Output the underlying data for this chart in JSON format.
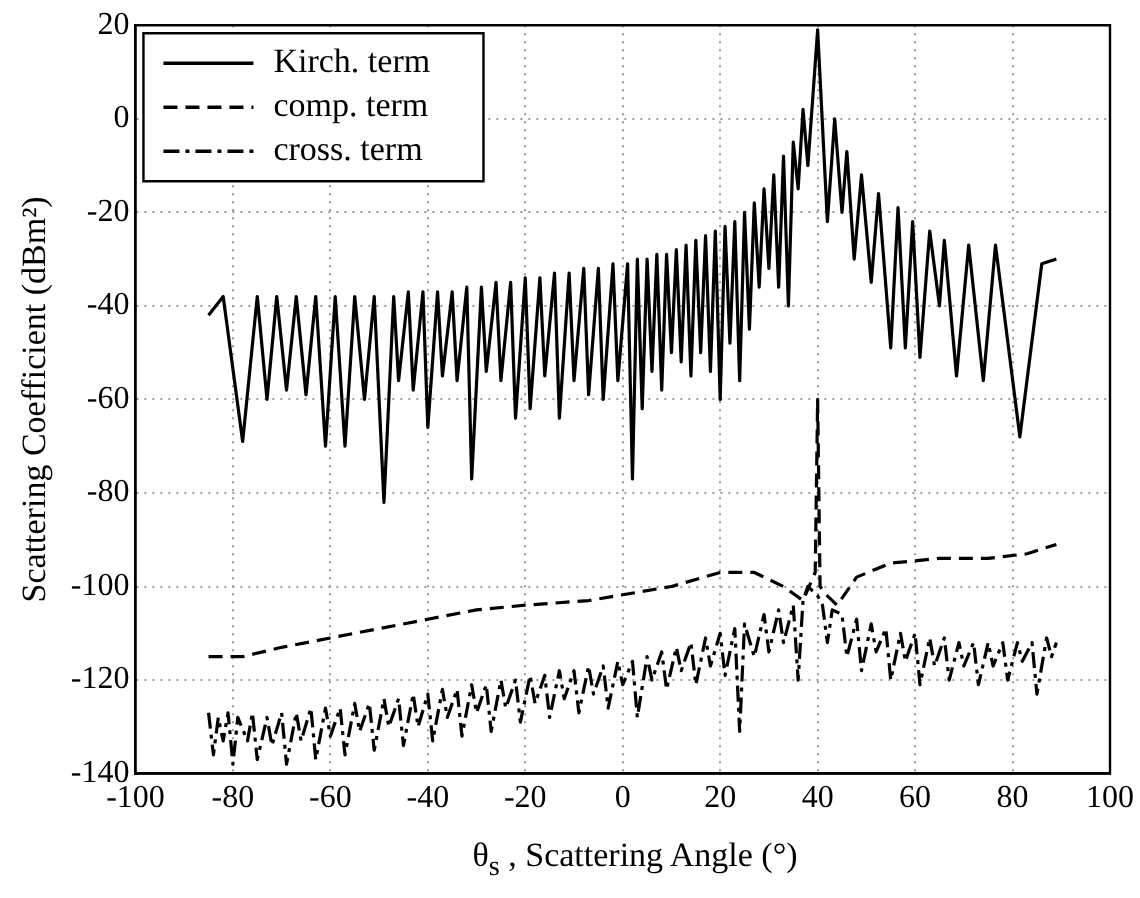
{
  "chart_data": {
    "type": "line",
    "xlabel": "θ$_{s}$ , Scattering Angle (°)",
    "ylabel": "Scattering Coefficient (dBm²)",
    "xlim": [
      -100,
      100
    ],
    "xticks": [
      -100,
      -80,
      -60,
      -40,
      -20,
      0,
      20,
      40,
      60,
      80,
      100
    ],
    "ylim": [
      -140,
      20
    ],
    "yticks": [
      -140,
      -120,
      -100,
      -80,
      -60,
      -40,
      -20,
      0,
      20
    ],
    "grid": true,
    "legend": "top left",
    "marker": "none",
    "series": [
      {
        "name": "Kirch. term",
        "color": "#000000",
        "line_style": "solid",
        "x": [
          -85,
          -82,
          -78,
          -75,
          -73,
          -71,
          -69,
          -67,
          -65,
          -63,
          -61,
          -59,
          -57,
          -55,
          -53,
          -51,
          -49,
          -47,
          -46,
          -44,
          -43,
          -41,
          -40,
          -38,
          -37,
          -35,
          -34,
          -32,
          -31,
          -29,
          -28,
          -26,
          -25,
          -23,
          -22,
          -20,
          -19,
          -17,
          -16,
          -14,
          -13,
          -11,
          -10,
          -8,
          -7,
          -5,
          -4,
          -2,
          -1,
          1,
          2,
          3,
          4,
          5,
          6,
          7,
          8,
          9,
          10,
          11,
          12,
          13,
          14,
          15,
          16,
          17,
          18,
          19,
          20,
          21,
          22,
          23,
          24,
          25,
          26,
          27,
          28,
          29,
          30,
          31,
          32,
          33,
          34,
          35,
          36,
          37,
          38,
          40,
          42,
          43.5,
          45,
          46,
          47.5,
          49,
          51,
          52.5,
          55,
          56.5,
          58,
          59.5,
          61,
          63,
          65,
          66,
          68.5,
          71,
          74,
          76.5,
          81.5,
          86,
          89
        ],
        "values": [
          -42,
          -38,
          -69,
          -38,
          -60,
          -38,
          -58,
          -38,
          -59,
          -38,
          -70,
          -38,
          -70,
          -38,
          -60,
          -38,
          -82,
          -38,
          -56,
          -37,
          -58,
          -37,
          -66,
          -37,
          -55,
          -37,
          -56,
          -36,
          -77,
          -36,
          -54,
          -35,
          -56,
          -35,
          -64,
          -34,
          -62,
          -34,
          -55,
          -33,
          -64,
          -33,
          -56,
          -32,
          -59,
          -32,
          -60,
          -31,
          -56,
          -31,
          -77,
          -30,
          -62,
          -30,
          -54,
          -29,
          -58,
          -29,
          -50,
          -28,
          -52,
          -27,
          -55,
          -26,
          -50,
          -25,
          -54,
          -24,
          -60,
          -23,
          -48,
          -22,
          -56,
          -20,
          -45,
          -18,
          -36,
          -15,
          -32,
          -12,
          -36,
          -8,
          -40,
          -5,
          -15,
          2,
          -10,
          19,
          -22,
          0,
          -20,
          -7,
          -30,
          -12,
          -35,
          -16,
          -49,
          -19,
          -49,
          -22,
          -51,
          -24,
          -40,
          -26,
          -55,
          -27,
          -56,
          -27,
          -68,
          -31,
          -30
        ]
      },
      {
        "name": "comp. term",
        "color": "#000000",
        "line_style": "dashed",
        "x": [
          -85,
          -78,
          -70,
          -60,
          -50,
          -40,
          -30,
          -20,
          -7,
          10,
          20,
          27,
          33,
          37,
          39.5,
          40,
          40.5,
          42,
          44,
          48,
          55,
          65,
          75,
          83,
          89
        ],
        "values": [
          -115,
          -115,
          -113,
          -111,
          -109,
          -107,
          -105,
          -104,
          -103,
          -100,
          -97,
          -97,
          -100,
          -103,
          -97,
          -60,
          -100,
          -102,
          -104,
          -98,
          -95,
          -94,
          -94,
          -93,
          -91
        ]
      },
      {
        "name": "cross. term",
        "color": "#000000",
        "line_style": "dashdot",
        "x": [
          -85,
          -84,
          -83,
          -82,
          -81,
          -80,
          -79,
          -77,
          -76,
          -75,
          -73,
          -72,
          -70,
          -69,
          -67,
          -66,
          -64,
          -63,
          -61,
          -60,
          -58,
          -57,
          -55,
          -54,
          -52,
          -51,
          -49,
          -48,
          -46,
          -45,
          -43,
          -42,
          -40,
          -39,
          -37,
          -36,
          -34,
          -33,
          -31,
          -30,
          -28,
          -27,
          -25,
          -24,
          -22,
          -21,
          -19,
          -18,
          -16,
          -15,
          -13,
          -12,
          -10,
          -9,
          -7,
          -6,
          -4,
          -3,
          -1,
          0,
          2,
          3,
          5,
          6,
          8,
          9,
          11,
          12,
          14,
          15,
          17,
          18,
          20,
          21,
          23,
          24,
          25,
          27,
          29,
          30,
          32,
          33,
          35,
          36,
          37,
          38,
          40,
          41,
          42,
          43,
          45,
          46,
          48,
          49,
          51,
          52,
          54,
          55,
          57,
          58,
          60,
          61,
          63,
          64,
          66,
          67,
          69,
          70,
          72,
          73,
          75,
          76,
          78,
          79,
          81,
          82,
          84,
          85,
          87,
          88,
          89
        ],
        "values": [
          -127,
          -136,
          -128,
          -133,
          -127,
          -138,
          -128,
          -133,
          -127,
          -137,
          -128,
          -134,
          -127,
          -138,
          -127,
          -133,
          -126,
          -137,
          -126,
          -132,
          -126,
          -136,
          -125,
          -131,
          -125,
          -135,
          -124,
          -130,
          -124,
          -134,
          -123,
          -130,
          -123,
          -133,
          -122,
          -128,
          -122,
          -132,
          -121,
          -127,
          -121,
          -131,
          -120,
          -126,
          -120,
          -129,
          -119,
          -125,
          -119,
          -128,
          -118,
          -124,
          -118,
          -127,
          -117,
          -123,
          -117,
          -126,
          -116,
          -121,
          -116,
          -128,
          -115,
          -120,
          -114,
          -122,
          -113,
          -118,
          -112,
          -121,
          -111,
          -117,
          -110,
          -119,
          -109,
          -131,
          -108,
          -115,
          -106,
          -114,
          -105,
          -112,
          -104,
          -120,
          -103,
          -100,
          -102,
          -104,
          -112,
          -105,
          -106,
          -115,
          -107,
          -118,
          -108,
          -114,
          -109,
          -120,
          -110,
          -116,
          -110,
          -121,
          -111,
          -117,
          -111,
          -120,
          -112,
          -117,
          -112,
          -121,
          -112,
          -117,
          -112,
          -120,
          -112,
          -116,
          -112,
          -123,
          -111,
          -115,
          -112
        ]
      }
    ]
  }
}
